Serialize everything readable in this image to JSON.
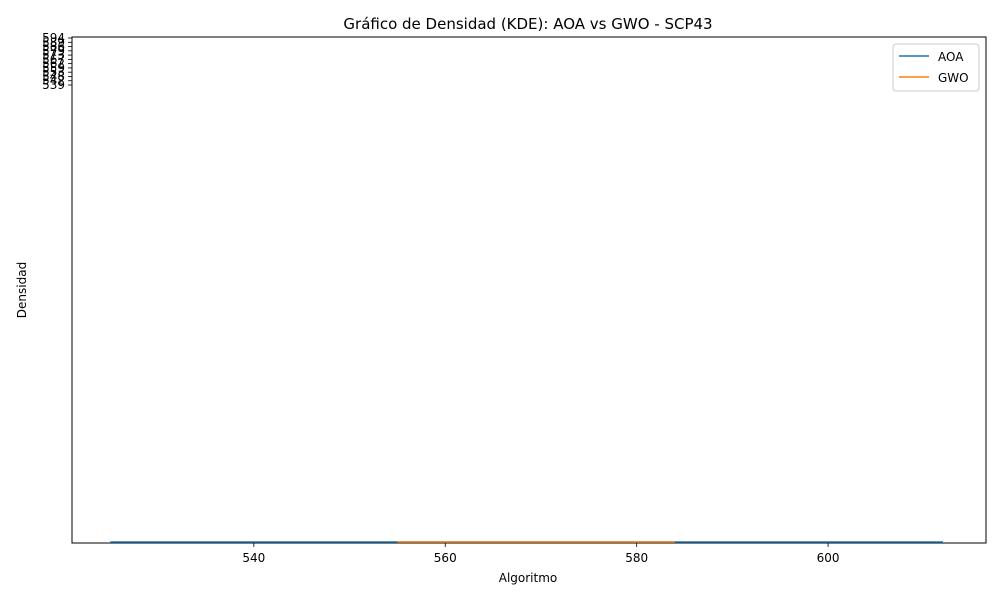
{
  "chart_data": {
    "type": "line",
    "title": "Gráfico de Densidad (KDE): AOA vs GWO - SCP43",
    "xlabel": "Algoritmo",
    "ylabel": "Densidad",
    "xlim": [
      521,
      616.5
    ],
    "x_ticks": [
      540,
      560,
      580,
      600
    ],
    "y_tick_labels": [
      "594",
      "589",
      "586",
      "579",
      "573",
      "567",
      "562",
      "559",
      "553",
      "548",
      "542",
      "539"
    ],
    "legend_position": "top-right",
    "grid": false,
    "series": [
      {
        "name": "AOA",
        "color": "#1f77b4",
        "x": [
          525,
          612
        ],
        "y": [
          0,
          0
        ]
      },
      {
        "name": "GWO",
        "color": "#ff7f0e",
        "x": [
          555,
          584
        ],
        "y": [
          0,
          0
        ]
      }
    ]
  }
}
